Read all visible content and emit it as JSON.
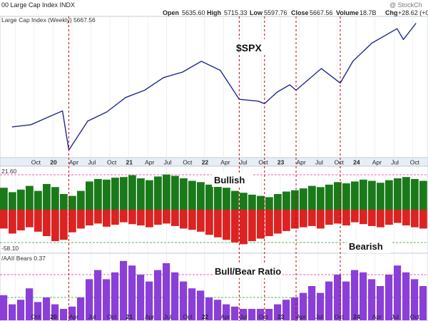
{
  "header": {
    "title": "00 Large Cap Index INDX",
    "watermark": "@ StockCh",
    "open_label": "Open",
    "open": "5635.60",
    "high_label": "High",
    "high": "5715.33",
    "low_label": "Low",
    "low": "5597.76",
    "close_label": "Close",
    "close": "5667.56",
    "volume_label": "Volume",
    "volume": "18.7B",
    "chg_label": "Chg",
    "chg": "+28.62 (+0"
  },
  "colors": {
    "price_line": "#1f2a8c",
    "bull_bar": "#1a7a1a",
    "bear_bar": "#dd2222",
    "ratio_bar": "#8a3fd8",
    "event_line": "#cc0000",
    "guide_line": "#e0309a",
    "green_guide": "#2aa02a",
    "axis_band": "#e8eef6"
  },
  "chart_data": [
    {
      "type": "line",
      "title": "Large Cap Index (Weekly) 5667.56",
      "annotation": "$SPX",
      "x": [
        "2019-06",
        "2019-09",
        "2019-12",
        "2020-02",
        "2020-03",
        "2020-06",
        "2020-09",
        "2020-12",
        "2021-03",
        "2021-06",
        "2021-09",
        "2021-12",
        "2022-03",
        "2022-06",
        "2022-09",
        "2022-10",
        "2022-12",
        "2023-02",
        "2023-03",
        "2023-07",
        "2023-10",
        "2023-12",
        "2024-03",
        "2024-07",
        "2024-08",
        "2024-10"
      ],
      "y": [
        2940,
        3000,
        3230,
        3380,
        2300,
        3100,
        3350,
        3750,
        3950,
        4300,
        4450,
        4750,
        4500,
        3700,
        3650,
        3580,
        3900,
        4100,
        3950,
        4550,
        4150,
        4750,
        5250,
        5650,
        5350,
        5800
      ],
      "x_ticks": [
        "Oct",
        "20",
        "Apr",
        "Jul",
        "Oct",
        "21",
        "Apr",
        "Jul",
        "Oct",
        "22",
        "Apr",
        "Jul",
        "Oct",
        "23",
        "Apr",
        "Jul",
        "Oct",
        "24",
        "Apr",
        "Jul",
        "Oct"
      ],
      "event_dates": [
        "2020-03",
        "2022-06",
        "2022-10",
        "2023-03",
        "2023-10"
      ]
    },
    {
      "type": "bar",
      "title": "21.60",
      "annotation_bull": "Bullish",
      "annotation_bear": "Bearish",
      "guide_label": "-58.10",
      "series": [
        {
          "name": "Bullish",
          "values": [
            35,
            28,
            32,
            38,
            30,
            41,
            36,
            25,
            22,
            30,
            45,
            49,
            48,
            51,
            52,
            55,
            50,
            47,
            53,
            56,
            54,
            50,
            46,
            44,
            40,
            38,
            35,
            30,
            27,
            24,
            22,
            20,
            25,
            29,
            31,
            34,
            38,
            36,
            40,
            44,
            42,
            45,
            48,
            46,
            43,
            47,
            50,
            52,
            49,
            46
          ]
        },
        {
          "name": "Bearish",
          "values": [
            -30,
            -38,
            -33,
            -28,
            -35,
            -42,
            -50,
            -48,
            -36,
            -30,
            -25,
            -22,
            -27,
            -24,
            -20,
            -23,
            -25,
            -28,
            -24,
            -22,
            -26,
            -30,
            -32,
            -35,
            -40,
            -44,
            -48,
            -52,
            -55,
            -50,
            -46,
            -42,
            -38,
            -34,
            -30,
            -28,
            -26,
            -30,
            -24,
            -22,
            -25,
            -20,
            -23,
            -26,
            -28,
            -24,
            -21,
            -25,
            -28,
            -30
          ]
        }
      ]
    },
    {
      "type": "bar",
      "title": "/AAII Bears 0.37",
      "annotation": "Bull/Bear Ratio",
      "series": [
        {
          "name": "AAII Bears",
          "values": [
            1.1,
            0.7,
            0.9,
            1.4,
            0.8,
            1.0,
            0.7,
            0.5,
            0.6,
            1.0,
            1.8,
            2.2,
            1.8,
            2.1,
            2.6,
            2.4,
            2.0,
            1.7,
            2.2,
            2.5,
            2.1,
            1.7,
            1.4,
            1.3,
            1.0,
            0.9,
            0.7,
            0.6,
            0.5,
            0.5,
            0.5,
            0.5,
            0.7,
            0.9,
            1.0,
            1.2,
            1.5,
            1.2,
            1.7,
            2.0,
            1.7,
            2.2,
            2.1,
            1.8,
            1.5,
            2.0,
            2.4,
            2.1,
            1.8,
            1.5
          ]
        }
      ]
    }
  ]
}
